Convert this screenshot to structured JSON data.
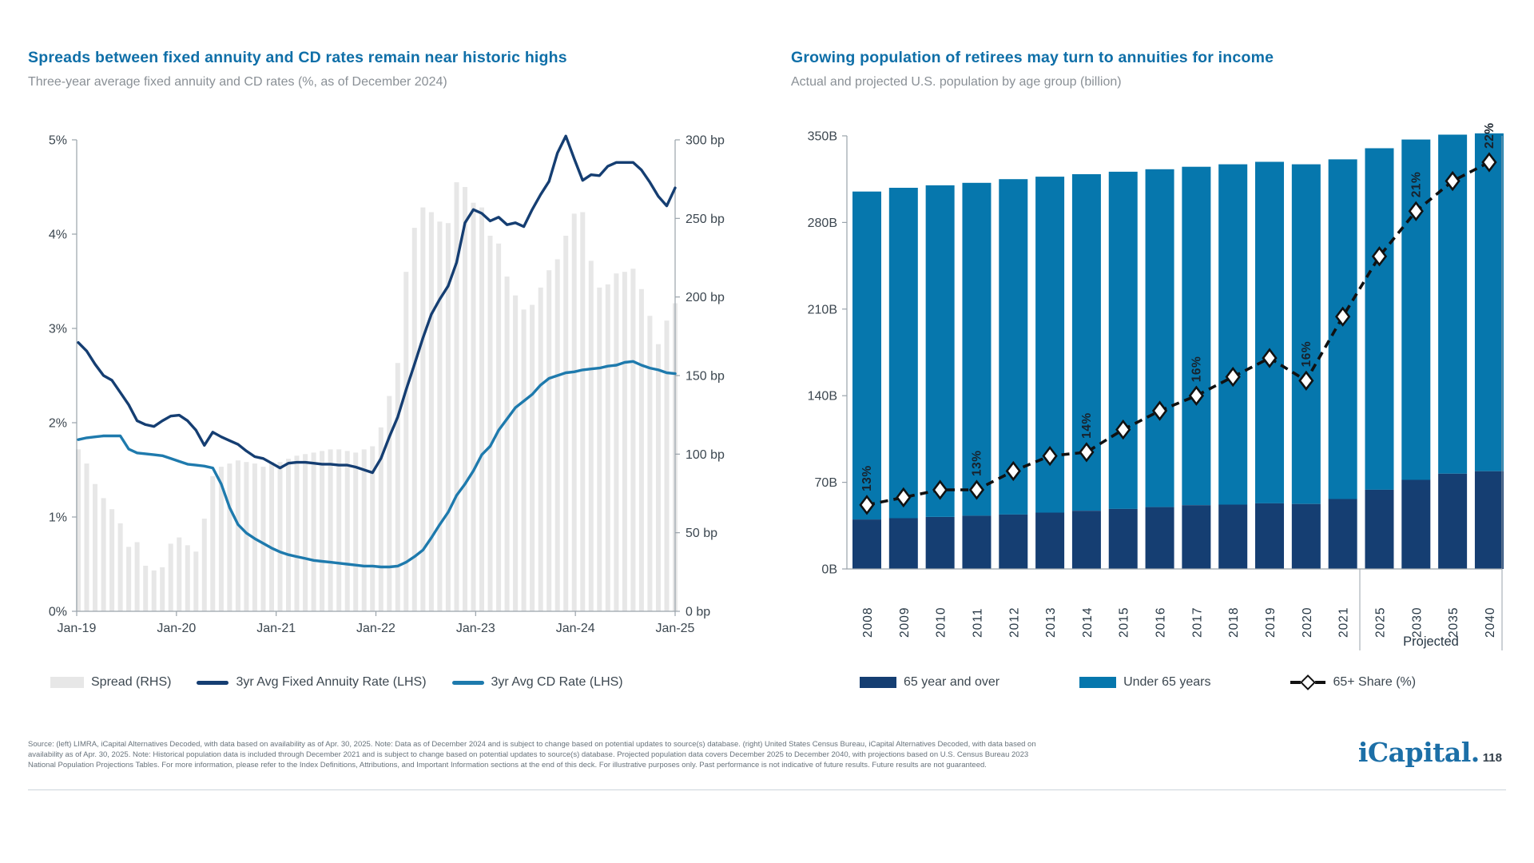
{
  "page": {
    "footer": {
      "lines": [
        "Source: (left) LIMRA, iCapital Alternatives Decoded, with data based on availability as of Apr. 30, 2025. Note: Data as of December 2024 and is subject to change based on potential updates to source(s) database. (right) United States Census Bureau, iCapital Alternatives Decoded, with data based on",
        "availability as of Apr. 30, 2025. Note: Historical population data is included through December 2021 and is subject to change based on potential updates to source(s) database. Projected population data covers December 2025 to December 2040, with projections based on U.S. Census Bureau 2023",
        "National Population Projections Tables. For more information, please refer to the Index Definitions, Attributions, and Important Information sections at the end of this deck. For illustrative purposes only. Past performance is not indicative of future results. Future results are not guaranteed."
      ]
    },
    "logo": {
      "word": "iCapital.",
      "page_number": "118"
    },
    "colors": {
      "title_blue": "#0f6fa8",
      "subtitle_gray": "#8a9096",
      "axis_text": "#3c4750",
      "axis_line": "#9aa3ab",
      "footer_gray": "#68737c",
      "logo_blue": "#1c6fa7",
      "separator": "#ccd5db"
    }
  },
  "chart_data": [
    {
      "type": "bar",
      "subtype": "combo-bar-plus-two-lines",
      "title": "Spreads between fixed annuity and CD rates remain near historic highs",
      "subtitle": "Three-year average fixed annuity and CD rates (%, as of December 2024)",
      "x_monthly_from": "Jan-2019",
      "x_monthly_to": "Dec-2024",
      "x_tick_labels": [
        "Jan-19",
        "Jan-20",
        "Jan-21",
        "Jan-22",
        "Jan-23",
        "Jan-24",
        "Jan-25"
      ],
      "y_left_axis": {
        "ticks": [
          "0%",
          "1%",
          "2%",
          "3%",
          "4%",
          "5%"
        ],
        "range": [
          0,
          5
        ],
        "unit": "%"
      },
      "y_right_axis": {
        "ticks": [
          "0 bp",
          "50 bp",
          "100 bp",
          "150 bp",
          "200 bp",
          "250 bp",
          "300 bp"
        ],
        "range": [
          0,
          300
        ],
        "unit": "bp"
      },
      "grid": false,
      "legend_position": "bottom",
      "series": [
        {
          "name": "Spread (RHS)",
          "type": "bar",
          "axis": "right",
          "unit": "bp",
          "color": "#e7e7e7",
          "values": [
            103,
            94,
            81,
            72,
            65,
            56,
            41,
            44,
            29,
            26,
            28,
            43,
            47,
            42,
            38,
            59,
            86,
            92,
            94,
            96,
            95,
            94,
            92,
            95,
            95,
            97,
            99,
            100,
            101,
            102,
            103,
            103,
            102,
            101,
            103,
            105,
            117,
            137,
            158,
            216,
            244,
            257,
            254,
            248,
            247,
            273,
            270,
            260,
            257,
            239,
            234,
            213,
            201,
            192,
            195,
            206,
            217,
            224,
            239,
            253,
            254,
            223,
            206,
            208,
            215,
            216,
            218,
            205,
            188,
            170,
            185,
            196
          ]
        },
        {
          "name": "3yr Avg Fixed Annuity Rate (LHS)",
          "type": "line",
          "axis": "left",
          "unit": "%",
          "color": "#153e72",
          "values": [
            2.85,
            2.76,
            2.62,
            2.5,
            2.45,
            2.32,
            2.19,
            2.02,
            1.98,
            1.96,
            2.02,
            2.07,
            2.08,
            2.02,
            1.92,
            1.76,
            1.9,
            1.85,
            1.81,
            1.77,
            1.7,
            1.64,
            1.62,
            1.57,
            1.52,
            1.57,
            1.58,
            1.58,
            1.57,
            1.56,
            1.56,
            1.55,
            1.55,
            1.53,
            1.5,
            1.47,
            1.62,
            1.85,
            2.06,
            2.35,
            2.62,
            2.9,
            3.15,
            3.31,
            3.45,
            3.7,
            4.12,
            4.26,
            4.22,
            4.14,
            4.18,
            4.1,
            4.12,
            4.08,
            4.26,
            4.42,
            4.56,
            4.86,
            5.04,
            4.8,
            4.57,
            4.63,
            4.62,
            4.72,
            4.76,
            4.76,
            4.76,
            4.68,
            4.55,
            4.4,
            4.3,
            4.49
          ]
        },
        {
          "name": "3yr Avg CD Rate (LHS)",
          "type": "line",
          "axis": "left",
          "unit": "%",
          "color": "#1e7aad",
          "values": [
            1.82,
            1.84,
            1.85,
            1.86,
            1.86,
            1.86,
            1.72,
            1.68,
            1.67,
            1.66,
            1.65,
            1.62,
            1.59,
            1.56,
            1.55,
            1.54,
            1.52,
            1.35,
            1.1,
            0.92,
            0.83,
            0.77,
            0.72,
            0.67,
            0.63,
            0.6,
            0.58,
            0.56,
            0.54,
            0.53,
            0.52,
            0.51,
            0.5,
            0.49,
            0.48,
            0.48,
            0.47,
            0.47,
            0.48,
            0.52,
            0.58,
            0.65,
            0.78,
            0.92,
            1.05,
            1.23,
            1.35,
            1.49,
            1.66,
            1.75,
            1.92,
            2.04,
            2.16,
            2.23,
            2.3,
            2.4,
            2.47,
            2.5,
            2.53,
            2.54,
            2.56,
            2.57,
            2.58,
            2.6,
            2.61,
            2.64,
            2.65,
            2.61,
            2.58,
            2.56,
            2.53,
            2.52
          ]
        }
      ]
    },
    {
      "type": "bar",
      "subtype": "stacked-bar-plus-line",
      "title": "Growing population of retirees may turn to annuities for income",
      "subtitle": "Actual and projected U.S. population by age group (billion)",
      "categories": [
        "2008",
        "2009",
        "2010",
        "2011",
        "2012",
        "2013",
        "2014",
        "2015",
        "2016",
        "2017",
        "2018",
        "2019",
        "2020",
        "2021",
        "2025",
        "2030",
        "2035",
        "2040"
      ],
      "y_axis": {
        "ticks": [
          "0B",
          "70B",
          "140B",
          "210B",
          "280B",
          "350B"
        ],
        "range": [
          0,
          350
        ],
        "unit": "B"
      },
      "grid": false,
      "legend_position": "bottom",
      "series": [
        {
          "name": "65 year and over",
          "color": "#153e72",
          "values": [
            40,
            41,
            42,
            43,
            44,
            45.5,
            47,
            48.5,
            50,
            51.5,
            52,
            53,
            52.5,
            56.5,
            64,
            72,
            77,
            79
          ]
        },
        {
          "name": "Under 65 years",
          "color": "#0677ad",
          "values": [
            265,
            267,
            268,
            269,
            271,
            271.5,
            272,
            272.5,
            273,
            273.5,
            275,
            276,
            274.5,
            274.5,
            276,
            275,
            274,
            273
          ]
        }
      ],
      "share_line": {
        "name": "65+ Share (%)",
        "color": "#111111",
        "marker": "diamond",
        "style": "dashed",
        "values": [
          13.0,
          13.2,
          13.4,
          13.4,
          13.9,
          14.3,
          14.4,
          15.0,
          15.5,
          15.9,
          16.4,
          16.9,
          16.3,
          18.0,
          19.6,
          20.8,
          21.6,
          22.1
        ],
        "labels": [
          {
            "index": 0,
            "text": "13%"
          },
          {
            "index": 3,
            "text": "13%"
          },
          {
            "index": 6,
            "text": "14%"
          },
          {
            "index": 9,
            "text": "16%"
          },
          {
            "index": 12,
            "text": "16%"
          },
          {
            "index": 15,
            "text": "21%"
          },
          {
            "index": 17,
            "text": "22%"
          }
        ],
        "hidden_axis_range": [
          11.3,
          22.8
        ]
      },
      "projected": {
        "label": "Projected",
        "from_category": "2025"
      }
    }
  ]
}
